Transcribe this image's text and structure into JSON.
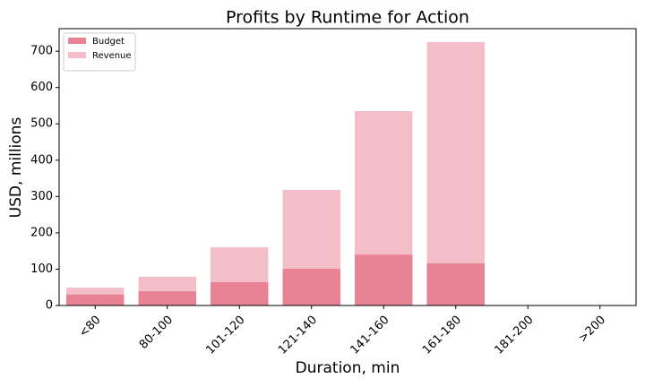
{
  "chart_data": {
    "type": "bar",
    "title": "Profits by Runtime for Action",
    "x_label": "Duration, min",
    "y_label": "USD, millions",
    "categories": [
      "<80",
      "80-100",
      "101-120",
      "121-140",
      "141-160",
      "161-180",
      "181-200",
      ">200"
    ],
    "series": [
      {
        "name": "Budget",
        "color": "#e88396",
        "values": [
          30,
          39,
          64,
          101,
          140,
          116,
          null,
          null
        ]
      },
      {
        "name": "Revenue",
        "color": "#f3bec8",
        "values": [
          49,
          79,
          160,
          318,
          535,
          725,
          null,
          null
        ]
      }
    ],
    "ylim": [
      0,
      762
    ],
    "yticks": [
      0,
      100,
      200,
      300,
      400,
      500,
      600,
      700
    ],
    "grid": false,
    "legend": "upper-left"
  }
}
